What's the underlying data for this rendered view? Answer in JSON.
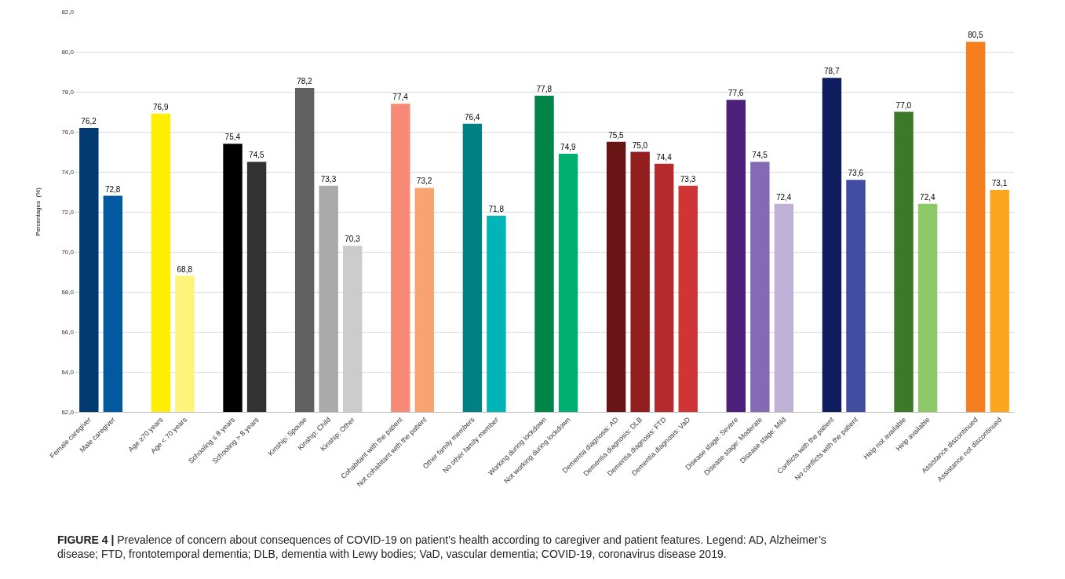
{
  "chart_data": {
    "type": "bar",
    "ylabel": "Percentages  (%)",
    "categories": [
      "Female caregiver",
      "Male caregiver",
      null,
      "Age ≥70 years",
      "Age < 70 years",
      null,
      "Schooling ≤ 8 years",
      "Schooling > 8 years",
      null,
      "Kinship: Spouse",
      "Kinship: Child",
      "Kinship: Other",
      null,
      "Cohabitant with the patient",
      "Not cohabitant with the patient",
      null,
      "Other family members",
      "No other family member",
      null,
      "Working during lockdown",
      "Not working during lockdown",
      null,
      "Dementia diagnosis: AD",
      "Dementia diagnosis: DLB",
      "Dementia diagnosis: FTD",
      "Dementia diagnosis: VaD",
      null,
      "Disease stage: Severe",
      "Disease stage: Moderate",
      "Disease stage: Mild",
      null,
      "Conflicts with the patient",
      "No conflicts with the patient",
      null,
      "Help not available",
      "Help available",
      null,
      "Assistance discontinued",
      "Assistance not discontinued"
    ],
    "values": [
      76.2,
      72.8,
      null,
      76.9,
      68.8,
      null,
      75.4,
      74.5,
      null,
      78.2,
      73.3,
      70.3,
      null,
      77.4,
      73.2,
      null,
      76.4,
      71.8,
      null,
      77.8,
      74.9,
      null,
      75.5,
      75.0,
      74.4,
      73.3,
      null,
      77.6,
      74.5,
      72.4,
      null,
      78.7,
      73.6,
      null,
      77.0,
      72.4,
      null,
      80.5,
      73.1
    ],
    "value_labels": [
      "76,2",
      "72,8",
      null,
      "76,9",
      "68,8",
      null,
      "75,4",
      "74,5",
      null,
      "78,2",
      "73,3",
      "70,3",
      null,
      "77,4",
      "73,2",
      null,
      "76,4",
      "71,8",
      null,
      "77,8",
      "74,9",
      null,
      "75,5",
      "75,0",
      "74,4",
      "73,3",
      null,
      "77,6",
      "74,5",
      "72,4",
      null,
      "78,7",
      "73,6",
      null,
      "77,0",
      "72,4",
      null,
      "80,5",
      "73,1"
    ],
    "colors": [
      "#003a70",
      "#005aa0",
      null,
      "#ffee00",
      "#fff47a",
      null,
      "#000000",
      "#333333",
      null,
      "#606060",
      "#aaaaaa",
      "#cccccc",
      null,
      "#f78a74",
      "#f9a36e",
      null,
      "#008080",
      "#00b5b8",
      null,
      "#008448",
      "#00b070",
      null,
      "#6a1515",
      "#931e1e",
      "#b52b2b",
      "#d03535",
      null,
      "#4b1f7a",
      "#8469b4",
      "#bfb0d8",
      null,
      "#0f1c5e",
      "#404da0",
      null,
      "#3a7a28",
      "#8cc868",
      null,
      "#f57e1f",
      "#fba61c"
    ],
    "ylim": [
      62,
      82
    ],
    "yticks": [
      {
        "value": 62,
        "label": "62,0"
      },
      {
        "value": 64,
        "label": "64,0"
      },
      {
        "value": 66,
        "label": "66,0"
      },
      {
        "value": 68,
        "label": "68,0"
      },
      {
        "value": 70,
        "label": "70,0"
      },
      {
        "value": 72,
        "label": "72,0"
      },
      {
        "value": 74,
        "label": "74,0"
      },
      {
        "value": 76,
        "label": "76,0"
      },
      {
        "value": 78,
        "label": "78,0"
      },
      {
        "value": 80,
        "label": "80,0"
      },
      {
        "value": 82,
        "label": "82,0"
      }
    ],
    "grid": "y",
    "annotations": [
      "FIGURE 4 | Prevalence of concern about consequences of COVID-19 on patient’s health according to caregiver and patient features. Legend: AD, Alzheimer’s disease; FTD, frontotemporal dementia; DLB, dementia with Lewy bodies; VaD, vascular dementia; COVID-19, coronavirus disease 2019."
    ]
  }
}
